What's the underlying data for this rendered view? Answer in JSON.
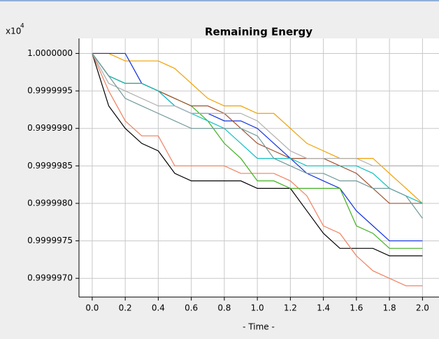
{
  "chart_data": {
    "type": "line",
    "title": "Remaining Energy",
    "x_label": "- Time -",
    "y_multiplier": {
      "base": "x10",
      "exponent": "4"
    },
    "x": [
      0,
      0.1,
      0.2,
      0.3,
      0.4,
      0.5,
      0.6,
      0.7,
      0.8,
      0.9,
      1.0,
      1.1,
      1.2,
      1.3,
      1.4,
      1.5,
      1.6,
      1.7,
      1.8,
      1.9,
      2.0
    ],
    "xlim": [
      -0.08,
      2.1
    ],
    "xticks": [
      {
        "value": 0,
        "label": "0.0"
      },
      0.2,
      0.4,
      0.6,
      0.8,
      {
        "value": 1,
        "label": "1.0"
      },
      1.2,
      1.4,
      1.6,
      1.8,
      {
        "value": 2,
        "label": "2.0"
      }
    ],
    "ylim": [
      0.99999675,
      1.0000002
    ],
    "yticks": [
      {
        "value": 0.999997,
        "label": "0.9999970"
      },
      0.9999975,
      {
        "value": 0.999998,
        "label": "0.9999980"
      },
      0.9999985,
      {
        "value": 0.999999,
        "label": "0.9999990"
      },
      0.9999995,
      {
        "value": 1,
        "label": "1.0000000"
      }
    ],
    "grid": true,
    "series": [
      {
        "color": "#000000",
        "values": [
          1,
          0.9999993,
          0.999999,
          0.9999988,
          0.9999987,
          0.9999984,
          0.9999983,
          0.9999983,
          0.9999983,
          0.9999983,
          0.9999982,
          0.9999982,
          0.9999982,
          0.9999979,
          0.9999976,
          0.9999974,
          0.9999974,
          0.9999974,
          0.9999973,
          0.9999973,
          0.9999973
        ]
      },
      {
        "color": "#f08060",
        "values": [
          1,
          0.9999995,
          0.9999991,
          0.9999989,
          0.9999989,
          0.9999985,
          0.9999985,
          0.9999985,
          0.9999985,
          0.9999984,
          0.9999984,
          0.9999984,
          0.9999983,
          0.9999981,
          0.9999977,
          0.9999976,
          0.9999973,
          0.9999971,
          0.999997,
          0.9999969,
          0.9999969
        ]
      },
      {
        "color": "#f0a000",
        "values": [
          1,
          1,
          0.9999999,
          0.9999999,
          0.9999999,
          0.9999998,
          0.9999996,
          0.9999994,
          0.9999993,
          0.9999993,
          0.9999992,
          0.9999992,
          0.999999,
          0.9999988,
          0.9999987,
          0.9999986,
          0.9999986,
          0.9999986,
          0.9999984,
          0.9999982,
          0.999998
        ]
      },
      {
        "color": "#1030e0",
        "values": [
          1,
          1,
          1,
          0.9999996,
          0.9999995,
          0.9999993,
          0.9999992,
          0.9999992,
          0.9999991,
          0.9999991,
          0.999999,
          0.9999988,
          0.9999986,
          0.9999984,
          0.9999983,
          0.9999982,
          0.9999979,
          0.9999977,
          0.9999975,
          0.9999975,
          0.9999975
        ]
      },
      {
        "color": "#40b020",
        "values": [
          1,
          0.9999997,
          0.9999996,
          0.9999996,
          0.9999995,
          0.9999994,
          0.9999993,
          0.9999991,
          0.9999988,
          0.9999986,
          0.9999983,
          0.9999983,
          0.9999982,
          0.9999982,
          0.9999982,
          0.9999982,
          0.9999977,
          0.9999976,
          0.9999974,
          0.9999974,
          0.9999974
        ]
      },
      {
        "color": "#a05030",
        "values": [
          1,
          0.9999997,
          0.9999996,
          0.9999996,
          0.9999995,
          0.9999994,
          0.9999993,
          0.9999993,
          0.9999992,
          0.999999,
          0.9999988,
          0.9999987,
          0.9999986,
          0.9999986,
          0.9999986,
          0.9999985,
          0.9999984,
          0.9999982,
          0.999998,
          0.999998,
          0.999998
        ]
      },
      {
        "color": "#10c0c0",
        "values": [
          1,
          0.9999997,
          0.9999996,
          0.9999996,
          0.9999995,
          0.9999993,
          0.9999992,
          0.9999991,
          0.999999,
          0.9999988,
          0.9999986,
          0.9999986,
          0.9999986,
          0.9999985,
          0.9999985,
          0.9999985,
          0.9999985,
          0.9999984,
          0.9999982,
          0.9999981,
          0.999998
        ]
      },
      {
        "color": "#b0b0b0",
        "values": [
          1,
          0.9999996,
          0.9999995,
          0.9999994,
          0.9999993,
          0.9999993,
          0.9999992,
          0.9999992,
          0.9999992,
          0.9999992,
          0.9999991,
          0.9999989,
          0.9999987,
          0.9999986,
          0.9999986,
          0.9999986,
          0.9999986,
          0.9999985,
          0.9999985,
          0.9999985,
          0.9999985
        ]
      },
      {
        "color": "#709898",
        "values": [
          1,
          0.9999997,
          0.9999994,
          0.9999993,
          0.9999992,
          0.9999991,
          0.999999,
          0.999999,
          0.999999,
          0.999999,
          0.9999989,
          0.9999986,
          0.9999985,
          0.9999984,
          0.9999984,
          0.9999983,
          0.9999983,
          0.9999982,
          0.9999982,
          0.9999981,
          0.9999978
        ]
      }
    ]
  }
}
